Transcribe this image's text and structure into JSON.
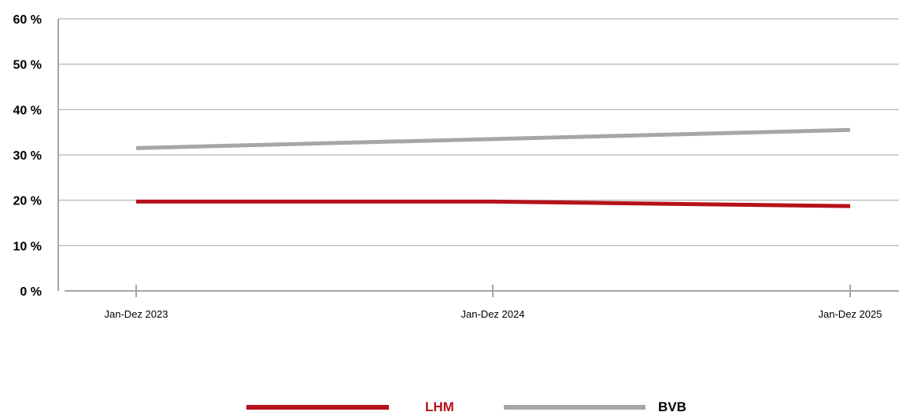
{
  "chart_data": {
    "type": "line",
    "categories": [
      "Jan-Dez 2023",
      "Jan-Dez 2024",
      "Jan-Dez 2025"
    ],
    "y_ticks": [
      "0 %",
      "10 %",
      "20 %",
      "30 %",
      "40 %",
      "50 %",
      "60 %"
    ],
    "ylim": [
      0,
      60
    ],
    "grid": true,
    "legend_position": "bottom",
    "series": [
      {
        "name": "LHM",
        "values": [
          19.7,
          19.7,
          18.7
        ],
        "color": "#b5121b",
        "legend_text_color": "#b5121b"
      },
      {
        "name": "BVB",
        "values": [
          31.5,
          33.5,
          35.5
        ],
        "color": "#a6a6a6",
        "legend_text_color": "#000000"
      }
    ]
  }
}
